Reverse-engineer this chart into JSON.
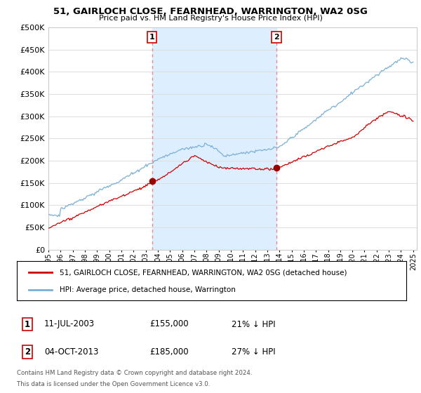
{
  "title": "51, GAIRLOCH CLOSE, FEARNHEAD, WARRINGTON, WA2 0SG",
  "subtitle": "Price paid vs. HM Land Registry's House Price Index (HPI)",
  "ylim": [
    0,
    500000
  ],
  "yticks": [
    0,
    50000,
    100000,
    150000,
    200000,
    250000,
    300000,
    350000,
    400000,
    450000,
    500000
  ],
  "xlim_start": 1995.0,
  "xlim_end": 2025.3,
  "sale1_x": 2003.53,
  "sale1_y": 155000,
  "sale1_label": "1",
  "sale1_date": "11-JUL-2003",
  "sale1_price": "£155,000",
  "sale1_hpi": "21% ↓ HPI",
  "sale2_x": 2013.75,
  "sale2_y": 185000,
  "sale2_label": "2",
  "sale2_date": "04-OCT-2013",
  "sale2_price": "£185,000",
  "sale2_hpi": "27% ↓ HPI",
  "line1_color": "#cc0000",
  "line2_color": "#7ab0d4",
  "shade_color": "#ddeeff",
  "marker_color": "#990000",
  "vline_color": "#ee8888",
  "grid_color": "#dddddd",
  "bg_color": "#ffffff",
  "legend_line1": "51, GAIRLOCH CLOSE, FEARNHEAD, WARRINGTON, WA2 0SG (detached house)",
  "legend_line2": "HPI: Average price, detached house, Warrington",
  "footer1": "Contains HM Land Registry data © Crown copyright and database right 2024.",
  "footer2": "This data is licensed under the Open Government Licence v3.0."
}
